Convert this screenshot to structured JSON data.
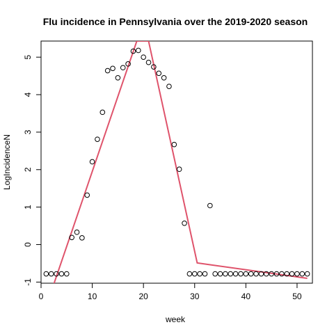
{
  "chart_data": {
    "type": "scatter",
    "title": "Flu incidence in Pennsylvania over the 2019-2020 season",
    "xlabel": "week",
    "ylabel": "LogIncidenceN",
    "xlim": [
      -0.0,
      53.0
    ],
    "ylim": [
      -1.03,
      5.43
    ],
    "x_ticks": [
      0,
      10,
      20,
      30,
      40,
      50
    ],
    "y_ticks": [
      -1,
      0,
      1,
      2,
      3,
      4,
      5
    ],
    "x_tick_labels": [
      "0",
      "10",
      "20",
      "30",
      "40",
      "50"
    ],
    "y_tick_labels": [
      "-1",
      "0",
      "1",
      "2",
      "3",
      "4",
      "5"
    ],
    "points": {
      "x": [
        1,
        2,
        3,
        4,
        5,
        6,
        7,
        8,
        9,
        10,
        11,
        12,
        13,
        14,
        15,
        16,
        17,
        18,
        19,
        20,
        21,
        22,
        23,
        24,
        25,
        26,
        27,
        28,
        29,
        30,
        31,
        32,
        33,
        34,
        35,
        36,
        37,
        38,
        39,
        40,
        41,
        42,
        43,
        44,
        45,
        46,
        47,
        48,
        49,
        50,
        51,
        52
      ],
      "y": [
        -0.78,
        -0.78,
        -0.78,
        -0.78,
        -0.78,
        0.19,
        0.33,
        0.18,
        1.32,
        2.21,
        2.81,
        3.53,
        4.64,
        4.7,
        4.45,
        4.72,
        4.82,
        5.16,
        5.18,
        5.0,
        4.86,
        4.74,
        4.57,
        4.45,
        4.22,
        2.67,
        2.01,
        0.57,
        -0.78,
        -0.78,
        -0.78,
        -0.78,
        1.04,
        -0.78,
        -0.78,
        -0.78,
        -0.78,
        -0.78,
        -0.78,
        -0.78,
        -0.78,
        -0.78,
        -0.78,
        -0.78,
        -0.78,
        -0.78,
        -0.78,
        -0.78,
        -0.78,
        -0.78,
        -0.78,
        -0.78
      ]
    },
    "fit_line": {
      "color": "#DF536B",
      "x": [
        2.5,
        18.7,
        21.0,
        30.5,
        52.0
      ],
      "y": [
        -1.05,
        5.43,
        5.43,
        -0.49,
        -0.9
      ]
    },
    "grid": false,
    "legend": "none"
  }
}
